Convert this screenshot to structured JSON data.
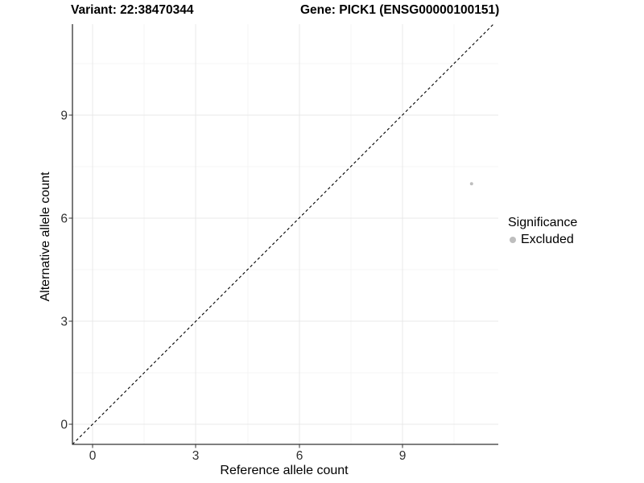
{
  "chart_data": {
    "type": "scatter",
    "title_left": "Variant: 22:38470344",
    "title_right": "Gene: PICK1 (ENSG00000100151)",
    "xlabel": "Reference allele count",
    "ylabel": "Alternative allele count",
    "xticks": [
      "0",
      "3",
      "6",
      "9"
    ],
    "yticks": [
      "0",
      "3",
      "6",
      "9"
    ],
    "xtick_values": [
      0,
      3,
      6,
      9
    ],
    "ytick_values": [
      0,
      3,
      6,
      9
    ],
    "xlim": [
      -0.584,
      11.776
    ],
    "ylim": [
      -0.586,
      11.648
    ],
    "grid": true,
    "panel_background": "#ffffff",
    "gridline_color": "#e9e9e9",
    "reference_line": {
      "type": "identity",
      "equation": "y = x",
      "style": "dashed",
      "color": "#000000"
    },
    "legend": {
      "position": "right",
      "title": "Significance",
      "items": [
        {
          "label": "Excluded",
          "color": "#bebebe"
        }
      ]
    },
    "series": [
      {
        "name": "Excluded",
        "color": "#bebebe",
        "point_radius": 2,
        "points": [
          {
            "x": 11,
            "y": 7
          }
        ]
      }
    ]
  }
}
